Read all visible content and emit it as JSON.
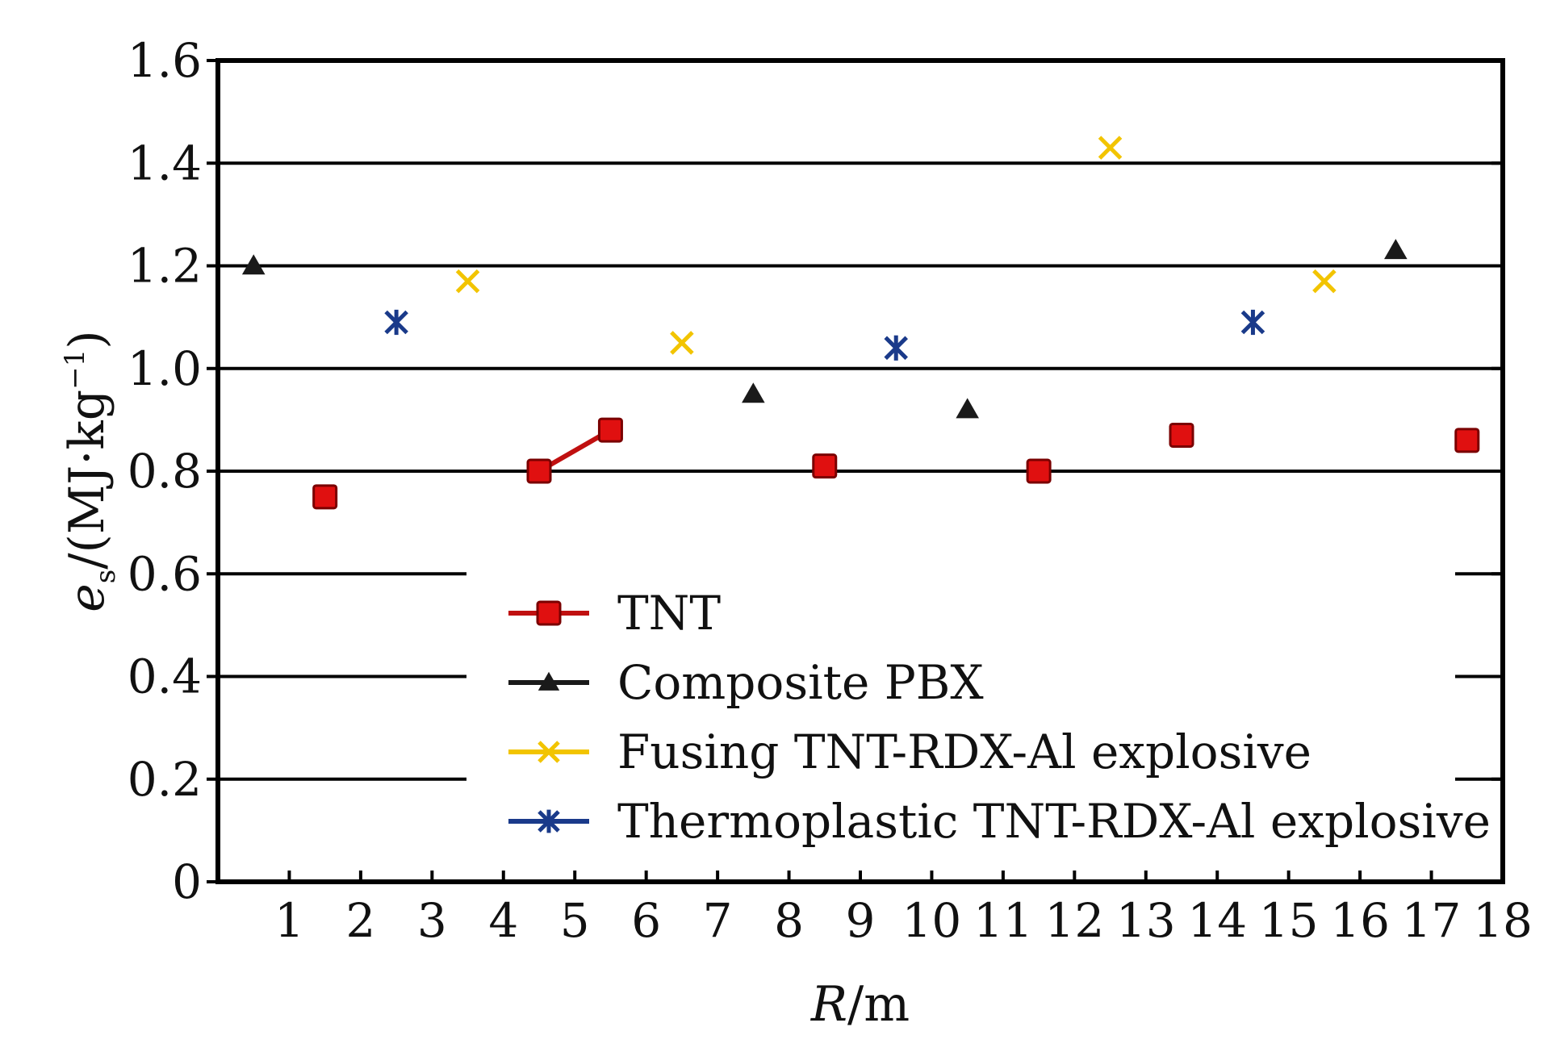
{
  "chart_data": {
    "type": "scatter",
    "title": "",
    "xlabel": {
      "italic": "R",
      "rest": "/m"
    },
    "ylabel": {
      "italic": "e",
      "sub": "s",
      "rest": "/(MJ·kg",
      "sup": "−1",
      "close": ")"
    },
    "xlim": [
      0,
      18
    ],
    "ylim": [
      0,
      1.6
    ],
    "x_ticks": [
      "1",
      "2",
      "3",
      "4",
      "5",
      "6",
      "7",
      "8",
      "9",
      "10",
      "11",
      "12",
      "13",
      "14",
      "15",
      "16",
      "17",
      "18"
    ],
    "y_ticks": [
      "0",
      "0.2",
      "0.4",
      "0.6",
      "0.8",
      "1.0",
      "1.2",
      "1.4",
      "1.6"
    ],
    "grid": "horizontal",
    "legend_position": "bottom-center",
    "series": [
      {
        "name": "TNT",
        "color": "#e01010",
        "marker": "square",
        "points": [
          [
            1.5,
            0.75
          ],
          [
            4.5,
            0.8
          ],
          [
            5.5,
            0.88
          ],
          [
            8.5,
            0.81
          ],
          [
            11.5,
            0.8
          ],
          [
            13.5,
            0.87
          ],
          [
            17.5,
            0.86
          ]
        ],
        "line_segments": [
          [
            [
              4.5,
              0.8
            ],
            [
              5.5,
              0.88
            ]
          ]
        ]
      },
      {
        "name": "Composite PBX",
        "color": "#1a1a1a",
        "marker": "triangle",
        "points": [
          [
            0.5,
            1.2
          ],
          [
            7.5,
            0.95
          ],
          [
            10.5,
            0.92
          ],
          [
            16.5,
            1.23
          ]
        ],
        "line_segments": []
      },
      {
        "name": "Fusing TNT-RDX-Al explosive",
        "color": "#f2c400",
        "marker": "x",
        "points": [
          [
            3.5,
            1.17
          ],
          [
            6.5,
            1.05
          ],
          [
            12.5,
            1.43
          ],
          [
            15.5,
            1.17
          ]
        ],
        "line_segments": []
      },
      {
        "name": "Thermoplastic TNT-RDX-Al explosive",
        "color": "#1a3a8a",
        "marker": "star",
        "points": [
          [
            2.5,
            1.09
          ],
          [
            9.5,
            1.04
          ],
          [
            14.5,
            1.09
          ]
        ],
        "line_segments": []
      }
    ]
  }
}
